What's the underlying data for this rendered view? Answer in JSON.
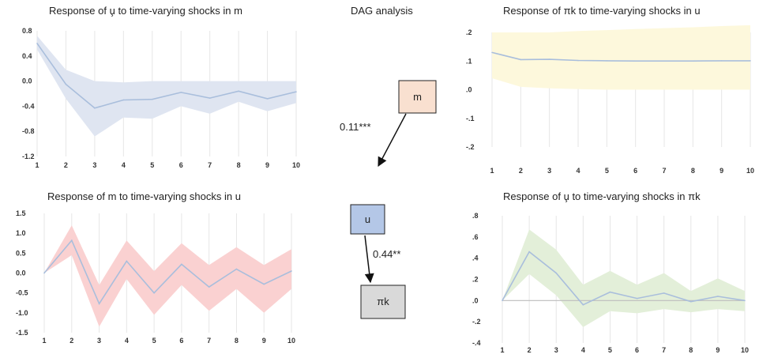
{
  "dag": {
    "title": "DAG analysis",
    "nodes": [
      {
        "id": "m",
        "label": "m",
        "fill": "#f9e0d0"
      },
      {
        "id": "u",
        "label": "u",
        "fill": "#b4c7e7"
      },
      {
        "id": "pk",
        "label": "πk",
        "fill": "#d9d9d9"
      }
    ],
    "edges": [
      {
        "from": "m",
        "to": "u",
        "label": "0.11***"
      },
      {
        "from": "u",
        "to": "pk",
        "label": "0.44**"
      }
    ]
  },
  "chart_data": [
    {
      "type": "line",
      "title": "Response of u̧ to time-varying shocks in m",
      "x": [
        1,
        2,
        3,
        4,
        5,
        6,
        7,
        8,
        9,
        10
      ],
      "series": [
        {
          "values": [
            0.6,
            -0.05,
            -0.43,
            -0.3,
            -0.29,
            -0.18,
            -0.27,
            -0.16,
            -0.28,
            -0.17
          ],
          "color": "#a9bedc"
        }
      ],
      "band": {
        "upper": [
          0.72,
          0.18,
          0.0,
          -0.02,
          0.0,
          0.0,
          0.0,
          0.0,
          0.0,
          0.0
        ],
        "lower": [
          0.5,
          -0.28,
          -0.88,
          -0.58,
          -0.6,
          -0.4,
          -0.52,
          -0.33,
          -0.48,
          -0.35
        ],
        "color": "#dfe5f1"
      },
      "yticks": [
        0.8,
        0.4,
        0.0,
        -0.4,
        -0.8,
        -1.2
      ],
      "ytick_labels": [
        "0.8",
        "0.4",
        "0.0",
        "-0.4",
        "-0.8",
        "-1.2"
      ],
      "ylim": [
        -1.2,
        0.8
      ],
      "zero_line": false
    },
    {
      "type": "line",
      "title": "Response of πk to time-varying shocks in u",
      "x": [
        1,
        2,
        3,
        4,
        5,
        6,
        7,
        8,
        9,
        10
      ],
      "series": [
        {
          "values": [
            0.13,
            0.105,
            0.106,
            0.102,
            0.101,
            0.1,
            0.1,
            0.1,
            0.101,
            0.101
          ],
          "color": "#a9bedc"
        }
      ],
      "band": {
        "upper": [
          0.2,
          0.2,
          0.2,
          0.205,
          0.208,
          0.212,
          0.215,
          0.218,
          0.222,
          0.225
        ],
        "lower": [
          0.04,
          0.01,
          0.005,
          0.002,
          0.0,
          0.0,
          0.0,
          0.0,
          0.0,
          0.0
        ],
        "color": "#fdf8dc"
      },
      "yticks": [
        0.2,
        0.1,
        0.0,
        -0.1,
        -0.2
      ],
      "ytick_labels": [
        ".2",
        ".1",
        ".0",
        "-.1",
        "-.2"
      ],
      "ylim": [
        -0.2,
        0.2
      ],
      "zero_line": false
    },
    {
      "type": "line",
      "title": "Response of m to time-varying shocks in u",
      "x": [
        1,
        2,
        3,
        4,
        5,
        6,
        7,
        8,
        9,
        10
      ],
      "series": [
        {
          "values": [
            0.0,
            0.82,
            -0.77,
            0.3,
            -0.5,
            0.22,
            -0.35,
            0.1,
            -0.28,
            0.05
          ],
          "color": "#a9bedc"
        }
      ],
      "band": {
        "upper": [
          0.0,
          1.2,
          -0.3,
          0.82,
          0.05,
          0.75,
          0.2,
          0.65,
          0.2,
          0.6
        ],
        "lower": [
          0.0,
          0.45,
          -1.35,
          -0.15,
          -1.05,
          -0.3,
          -0.95,
          -0.4,
          -1.0,
          -0.4
        ],
        "color": "#fad1d1"
      },
      "yticks": [
        1.5,
        1.0,
        0.5,
        0.0,
        -0.5,
        -1.0,
        -1.5
      ],
      "ytick_labels": [
        "1.5",
        "1.0",
        "0.5",
        "0.0",
        "-0.5",
        "-1.0",
        "-1.5"
      ],
      "ylim": [
        -1.5,
        1.5
      ],
      "zero_line": false
    },
    {
      "type": "line",
      "title": "Response of u̧ to time-varying shocks in πk",
      "x": [
        1,
        2,
        3,
        4,
        5,
        6,
        7,
        8,
        9,
        10
      ],
      "series": [
        {
          "values": [
            0.0,
            0.46,
            0.26,
            -0.04,
            0.08,
            0.02,
            0.07,
            -0.01,
            0.04,
            0.0
          ],
          "color": "#a9bedc"
        }
      ],
      "band": {
        "upper": [
          0.0,
          0.67,
          0.48,
          0.15,
          0.28,
          0.15,
          0.26,
          0.09,
          0.21,
          0.09
        ],
        "lower": [
          0.0,
          0.25,
          0.05,
          -0.25,
          -0.1,
          -0.12,
          -0.08,
          -0.11,
          -0.08,
          -0.1
        ],
        "color": "#e3efd9"
      },
      "yticks": [
        0.8,
        0.6,
        0.4,
        0.2,
        0.0,
        -0.2,
        -0.4
      ],
      "ytick_labels": [
        ".8",
        ".6",
        ".4",
        ".2",
        ".0",
        "-.2",
        "-.4"
      ],
      "ylim": [
        -0.4,
        0.8
      ],
      "zero_line": true
    }
  ]
}
